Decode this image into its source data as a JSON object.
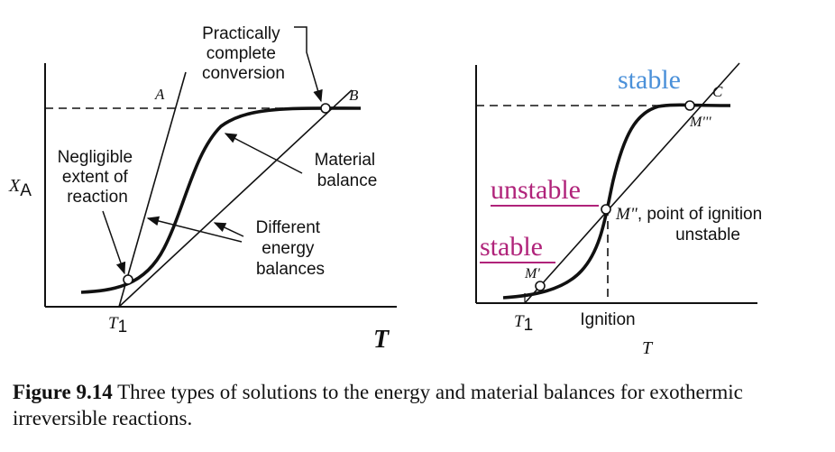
{
  "left_panel": {
    "y_label_main": "X",
    "y_label_sub": "A",
    "x_axis_label": "T",
    "tick_main": "T",
    "tick_sub": "1",
    "line_a_label": "A",
    "line_b_label": "B",
    "annotation_practically": [
      "Practically",
      "complete",
      "conversion"
    ],
    "annotation_negligible": [
      "Negligible",
      "extent of",
      "reaction"
    ],
    "annotation_material": [
      "Material",
      "balance"
    ],
    "annotation_energy": [
      "Different",
      "energy",
      "balances"
    ]
  },
  "right_panel": {
    "x_axis_label": "T",
    "tick_main": "T",
    "tick_sub": "1",
    "ignition_label": "Ignition",
    "line_c_label": "C",
    "point_m1": "M'",
    "point_m2": "M\"",
    "point_m3": "M'''",
    "m2_text_line1": ", point of ignition",
    "m2_text_line2": "unstable",
    "handwritten_stable_top": "stable",
    "handwritten_unstable": "unstable",
    "handwritten_stable_bottom": "stable",
    "colors": {
      "stable_top": "#4a90d9",
      "unstable": "#b0237a",
      "stable_bottom": "#b0237a"
    }
  },
  "caption": {
    "label": "Figure 9.14",
    "text": "Three types of solutions to the energy and material balances for exothermic irreversible reactions."
  }
}
